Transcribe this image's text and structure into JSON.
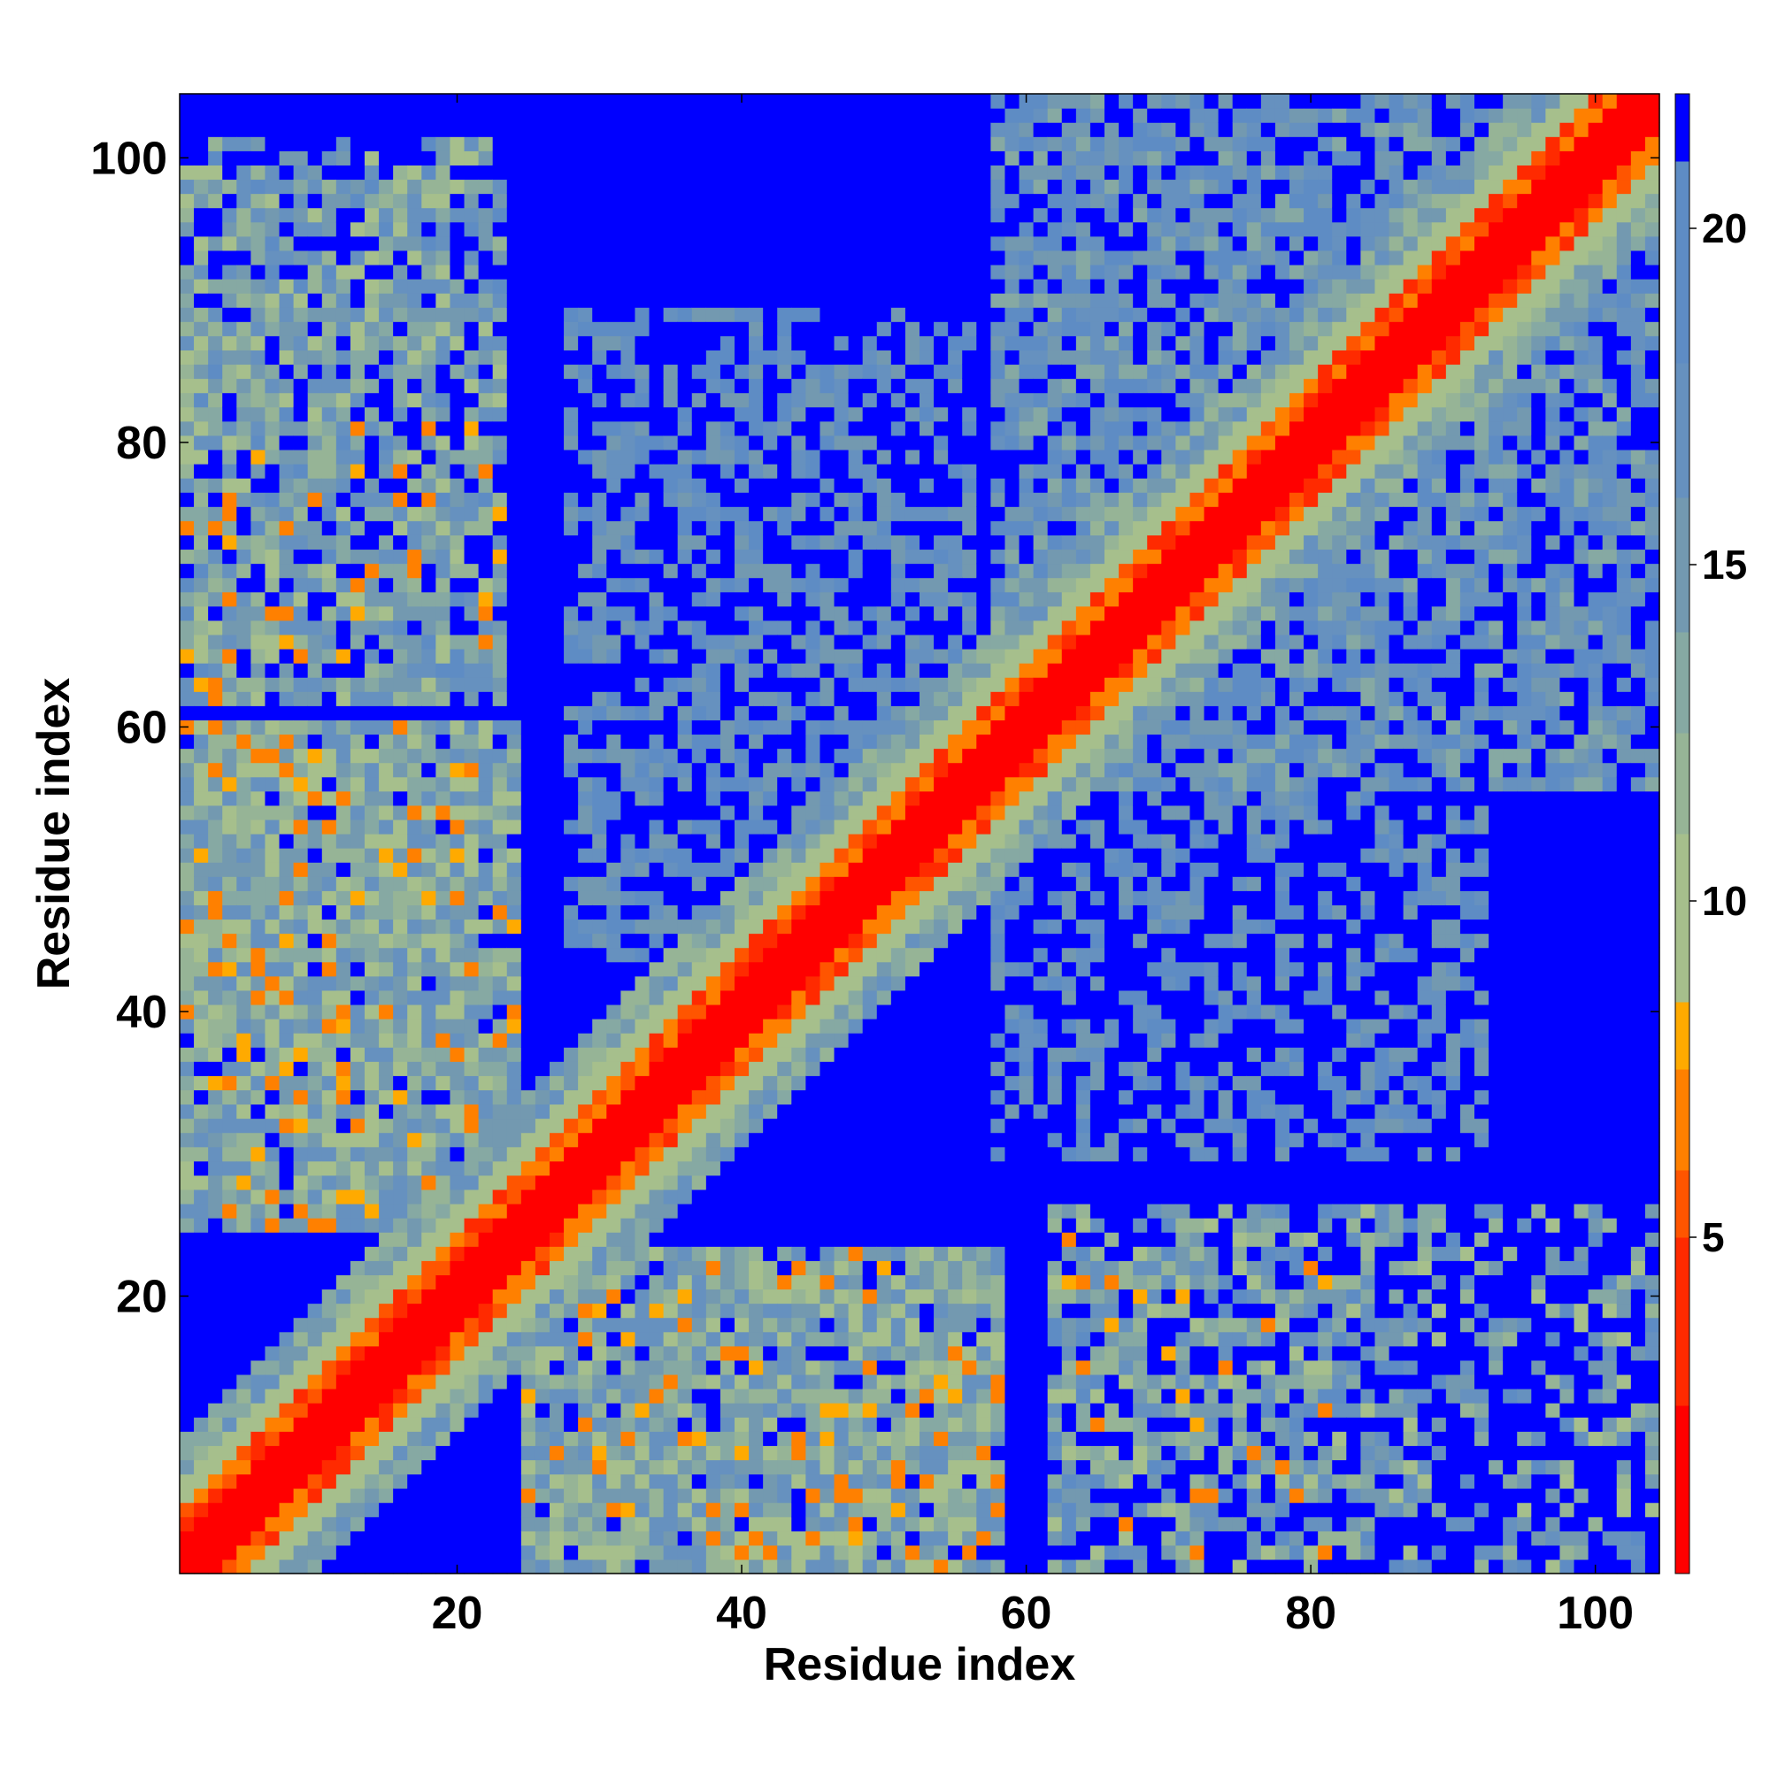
{
  "chart_data": {
    "type": "heatmap",
    "title": "",
    "xlabel": "Residue index",
    "ylabel": "Residue index",
    "n_residues": 104,
    "xlim": [
      0.5,
      104.5
    ],
    "ylim": [
      0.5,
      104.5
    ],
    "x_ticks": [
      20,
      40,
      60,
      80,
      100
    ],
    "y_ticks": [
      20,
      40,
      60,
      80,
      100
    ],
    "x_tick_labels": [
      "20",
      "40",
      "60",
      "80",
      "100"
    ],
    "y_tick_labels": [
      "20",
      "40",
      "60",
      "80",
      "100"
    ],
    "colorbar": {
      "range": [
        0,
        22
      ],
      "ticks": [
        5,
        10,
        15,
        20
      ],
      "tick_labels": [
        "5",
        "10",
        "15",
        "20"
      ],
      "bands": [
        {
          "from": 0,
          "to": 2.5,
          "color": "#ff0000"
        },
        {
          "from": 2.5,
          "to": 5,
          "color": "#ff2a00"
        },
        {
          "from": 5,
          "to": 6,
          "color": "#ff5500"
        },
        {
          "from": 6,
          "to": 7.5,
          "color": "#ff8000"
        },
        {
          "from": 7.5,
          "to": 8.5,
          "color": "#ffaa00"
        },
        {
          "from": 8.5,
          "to": 11,
          "color": "#a6bf8c"
        },
        {
          "from": 11,
          "to": 12.5,
          "color": "#96b496"
        },
        {
          "from": 12.5,
          "to": 14,
          "color": "#86a9a3"
        },
        {
          "from": 14,
          "to": 16,
          "color": "#7399b0"
        },
        {
          "from": 16,
          "to": 18,
          "color": "#6691bf"
        },
        {
          "from": 18,
          "to": 21,
          "color": "#5e8cc4"
        },
        {
          "from": 21,
          "to": 22,
          "color": "#0000ff"
        }
      ]
    },
    "contact_regions": [
      {
        "description_of": "main diagonal",
        "value_on_diagonal": 0,
        "value_offset_1_2": 3.5,
        "value_offset_3_4": 7,
        "value_offset_5_6": 10,
        "value_offset_7_9": 14
      },
      {
        "residues_a": [
          1,
          23
        ],
        "residues_b": [
          25,
          60
        ],
        "min_value": 7,
        "max_value": 16
      },
      {
        "residues_a": [
          1,
          23
        ],
        "residues_b": [
          64,
          100
        ],
        "min_value": 7,
        "max_value": 18
      },
      {
        "residues_a": [
          30,
          58
        ],
        "residues_b": [
          44,
          90
        ],
        "min_value": 14,
        "max_value": 20
      },
      {
        "residues_a": [
          60,
          104
        ],
        "residues_b": [
          66,
          102
        ],
        "min_value": 13,
        "max_value": 20
      },
      {
        "residues_a": [
          58,
          90
        ],
        "residues_b": [
          20,
          58
        ],
        "min_value": 15,
        "max_value": 20
      }
    ]
  }
}
